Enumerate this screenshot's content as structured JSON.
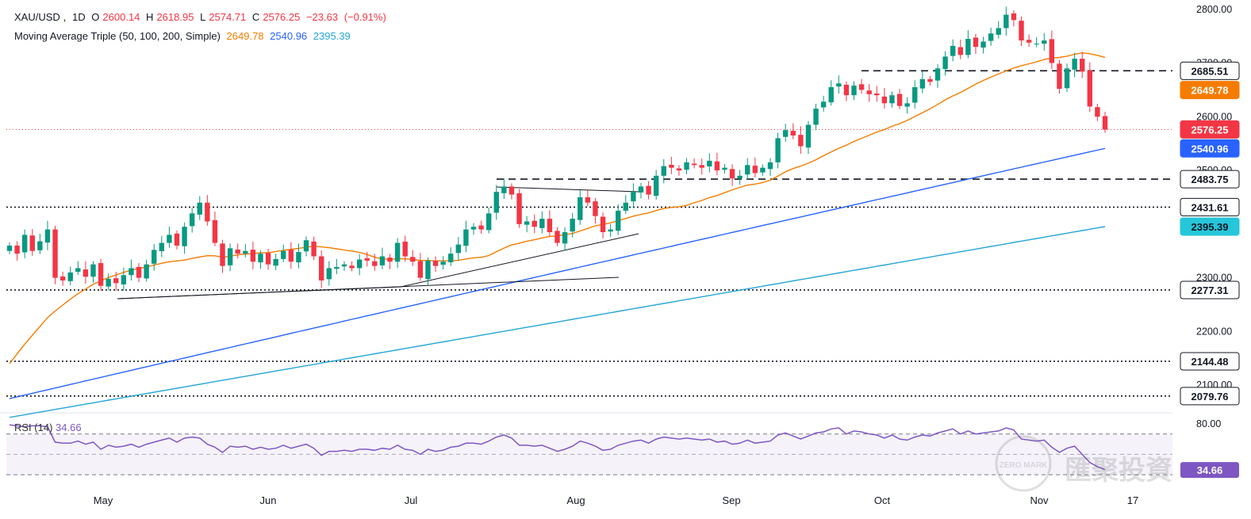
{
  "chart_data": {
    "type": "candlestick",
    "symbol": "XAU/USD",
    "timeframe": "1D",
    "ohlc_header": {
      "open": "2600.14",
      "high": "2618.95",
      "low": "2574.71",
      "close": "2576.25",
      "change": "−23.63",
      "change_pct": "(−0.91%)"
    },
    "moving_averages": {
      "title": "Moving Average Triple (50, 100, 200, Simple)",
      "ma50": "2649.78",
      "ma100": "2540.96",
      "ma200": "2395.39"
    },
    "price_axis": {
      "range": [
        2050,
        2810
      ],
      "ticks": [
        "2800.00",
        "2700.00",
        "2600.00",
        "2500.00",
        "2300.00",
        "2200.00",
        "2100.00"
      ]
    },
    "time_axis": [
      "May",
      "Jun",
      "Jul",
      "Aug",
      "Sep",
      "Oct",
      "Nov",
      "17"
    ],
    "levels": [
      {
        "label": "2685.51",
        "value": 2685.51,
        "style": "dashed"
      },
      {
        "label": "2483.75",
        "value": 2483.75,
        "style": "dashed"
      },
      {
        "label": "2431.61",
        "value": 2431.61,
        "style": "dotted"
      },
      {
        "label": "2277.31",
        "value": 2277.31,
        "style": "dotted"
      },
      {
        "label": "2144.48",
        "value": 2144.48,
        "style": "dotted"
      },
      {
        "label": "2079.76",
        "value": 2079.76,
        "style": "dotted"
      }
    ],
    "price_badges": [
      {
        "label": "2685.51",
        "value": 2685.51,
        "type": "level"
      },
      {
        "label": "2649.78",
        "value": 2649.78,
        "type": "ma50"
      },
      {
        "label": "2576.25",
        "value": 2576.25,
        "type": "last"
      },
      {
        "label": "2540.96",
        "value": 2540.96,
        "type": "ma100"
      },
      {
        "label": "2483.75",
        "value": 2483.75,
        "type": "level"
      },
      {
        "label": "2431.61",
        "value": 2431.61,
        "type": "level"
      },
      {
        "label": "2395.39",
        "value": 2395.39,
        "type": "ma200"
      },
      {
        "label": "2277.31",
        "value": 2277.31,
        "type": "level"
      },
      {
        "label": "2144.48",
        "value": 2144.48,
        "type": "level"
      },
      {
        "label": "2079.76",
        "value": 2079.76,
        "type": "level"
      }
    ],
    "closes": [
      2360,
      2345,
      2380,
      2350,
      2368,
      2390,
      2300,
      2295,
      2310,
      2318,
      2302,
      2325,
      2285,
      2298,
      2290,
      2305,
      2318,
      2300,
      2325,
      2352,
      2365,
      2380,
      2360,
      2395,
      2420,
      2440,
      2405,
      2365,
      2322,
      2355,
      2345,
      2350,
      2330,
      2345,
      2325,
      2335,
      2350,
      2330,
      2348,
      2370,
      2340,
      2295,
      2318,
      2320,
      2325,
      2318,
      2334,
      2332,
      2322,
      2340,
      2330,
      2365,
      2340,
      2330,
      2300,
      2332,
      2322,
      2330,
      2345,
      2362,
      2390,
      2395,
      2390,
      2420,
      2460,
      2470,
      2455,
      2400,
      2405,
      2395,
      2410,
      2385,
      2365,
      2385,
      2410,
      2450,
      2440,
      2415,
      2385,
      2390,
      2425,
      2440,
      2460,
      2470,
      2455,
      2490,
      2508,
      2505,
      2500,
      2515,
      2510,
      2505,
      2518,
      2500,
      2505,
      2485,
      2490,
      2510,
      2495,
      2505,
      2515,
      2560,
      2575,
      2565,
      2545,
      2585,
      2615,
      2628,
      2655,
      2662,
      2640,
      2658,
      2650,
      2642,
      2640,
      2625,
      2640,
      2620,
      2625,
      2655,
      2670,
      2665,
      2690,
      2712,
      2732,
      2715,
      2745,
      2730,
      2740,
      2755,
      2765,
      2790,
      2780,
      2742,
      2738,
      2736,
      2742,
      2700,
      2652,
      2690,
      2708,
      2684,
      2619,
      2600,
      2576
    ],
    "rsi": {
      "label": "RSI (14)",
      "value": "34.66",
      "axis_ticks": [
        "80.00"
      ],
      "upper_band": 70,
      "lower_band": 30,
      "values": [
        79,
        78,
        77,
        78,
        78,
        77,
        62,
        61,
        61,
        63,
        60,
        62,
        55,
        59,
        57,
        58,
        60,
        57,
        60,
        62,
        64,
        66,
        62,
        66,
        67,
        66,
        60,
        57,
        52,
        58,
        57,
        58,
        55,
        57,
        55,
        56,
        59,
        56,
        58,
        60,
        56,
        49,
        53,
        53,
        54,
        53,
        55,
        55,
        54,
        56,
        55,
        59,
        55,
        54,
        50,
        55,
        53,
        54,
        57,
        58,
        61,
        61,
        60,
        63,
        67,
        69,
        66,
        59,
        59,
        58,
        59,
        56,
        53,
        55,
        58,
        63,
        61,
        58,
        54,
        55,
        59,
        61,
        63,
        64,
        61,
        65,
        67,
        66,
        65,
        66,
        65,
        64,
        65,
        62,
        63,
        60,
        61,
        64,
        61,
        62,
        63,
        69,
        71,
        68,
        65,
        68,
        71,
        72,
        75,
        76,
        70,
        73,
        72,
        70,
        69,
        66,
        69,
        65,
        64,
        67,
        69,
        68,
        71,
        73,
        75,
        70,
        73,
        70,
        71,
        72,
        73,
        76,
        74,
        65,
        64,
        63,
        64,
        57,
        52,
        56,
        58,
        50,
        42,
        38,
        35
      ]
    }
  },
  "watermark": {
    "cn": "匯聚投資",
    "en": "ZERO MARK"
  }
}
